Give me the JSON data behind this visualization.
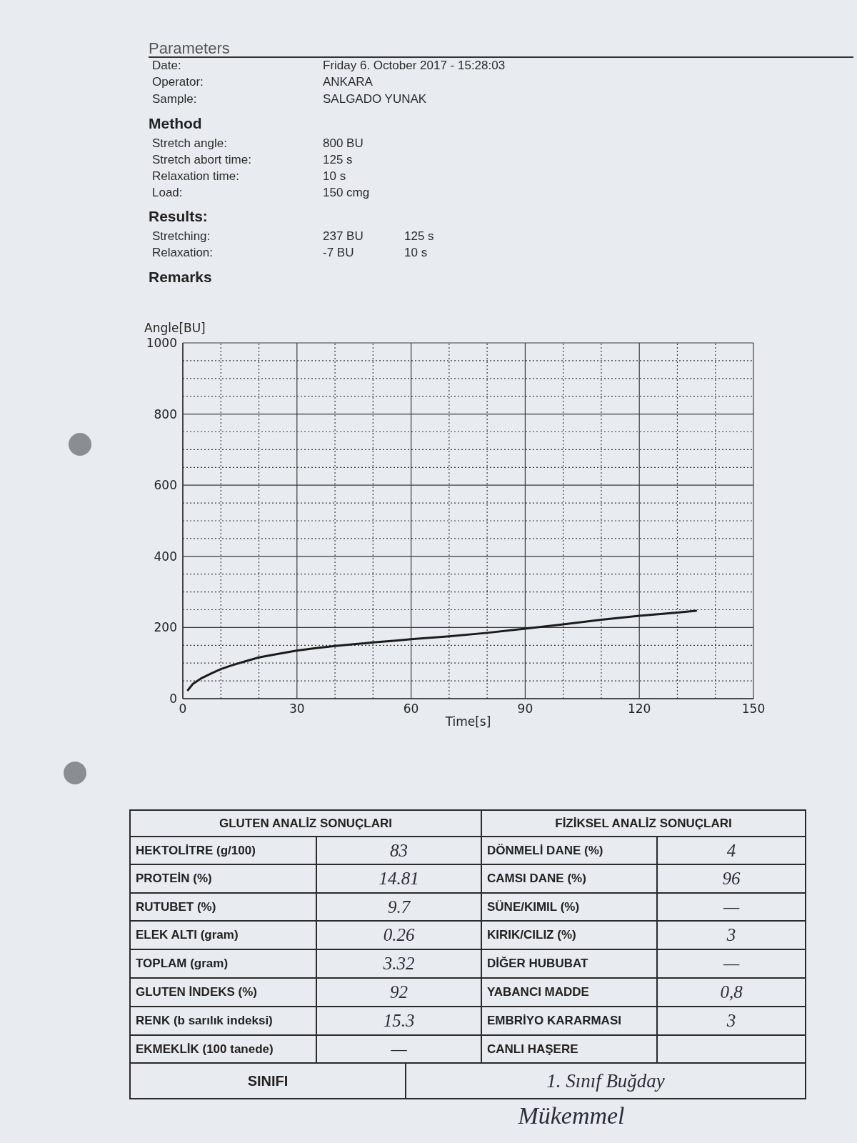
{
  "chart_data": [
    {
      "type": "other",
      "title": "Parameters",
      "annotations": [
        "Date:",
        "Friday 6. October 2017 - 15:28:03",
        "Operator:",
        "ANKARA",
        "Sample:",
        "SALGADO YUNAK",
        "Method",
        "Stretch angle:",
        "800 BU",
        "Stretch abort time:",
        "125 s",
        "Relaxation time:",
        "10 s",
        "Load:",
        "150 cmg",
        "Results:",
        "Stretching:",
        "237 BU",
        "125 s",
        "Relaxation:",
        "-7 BU",
        "10 s",
        "Remarks"
      ]
    },
    {
      "type": "line",
      "xlabel": "Time[s]",
      "ylabel": "Angle[BU]",
      "color": "#1b1b1b",
      "line_style": "solid",
      "grid": true,
      "x": [
        1.35,
        2.6,
        5,
        7.5,
        10,
        13,
        16.1,
        20,
        24.6,
        29.9,
        35,
        40,
        45,
        50,
        56,
        60,
        70,
        80,
        90,
        100,
        110,
        120,
        130,
        134.9
      ],
      "values": [
        24,
        41,
        58,
        71,
        83,
        94,
        104,
        116,
        125,
        135,
        142,
        148,
        153,
        158,
        163,
        167,
        175,
        185,
        197,
        209,
        222,
        233,
        242,
        247
      ],
      "xlim": [
        0,
        150
      ],
      "xticks": [
        0,
        {
          "value": 10,
          "label": null
        },
        {
          "value": 20,
          "label": null
        },
        30,
        {
          "value": 40,
          "label": null
        },
        {
          "value": 50,
          "label": null
        },
        60,
        {
          "value": 70,
          "label": null
        },
        {
          "value": 80,
          "label": null
        },
        90,
        {
          "value": 100,
          "label": null
        },
        {
          "value": 110,
          "label": null
        },
        120,
        {
          "value": 130,
          "label": null
        },
        {
          "value": 140,
          "label": null
        },
        150
      ],
      "ylim": [
        0,
        1000
      ],
      "yticks": [
        0,
        {
          "value": 50,
          "label": null
        },
        {
          "value": 100,
          "label": null
        },
        {
          "value": 150,
          "label": null
        },
        200,
        {
          "value": 250,
          "label": null
        },
        {
          "value": 300,
          "label": null
        },
        {
          "value": 350,
          "label": null
        },
        400,
        {
          "value": 450,
          "label": null
        },
        {
          "value": 500,
          "label": null
        },
        {
          "value": 550,
          "label": null
        },
        600,
        {
          "value": 650,
          "label": null
        },
        {
          "value": 700,
          "label": null
        },
        {
          "value": 750,
          "label": null
        },
        800,
        {
          "value": 850,
          "label": null
        },
        {
          "value": 900,
          "label": null
        },
        {
          "value": 950,
          "label": null
        },
        1000
      ]
    },
    {
      "type": "other",
      "annotations": [
        "GLUTEN ANALİZ SONUÇLARI",
        "FİZİKSEL ANALİZ SONUÇLARI",
        "HEKTOLİTRE (g/100)",
        "83",
        "DÖNMELİ DANE (%)",
        "4",
        "PROTEİN (%)",
        "14.81",
        "CAMSI DANE (%)",
        "96",
        "RUTUBET (%)",
        "9.7",
        "SÜNE/KIMIL (%)",
        "—",
        "ELEK ALTI (gram)",
        "0.26",
        "KIRIK/CILIZ (%)",
        "3",
        "TOPLAM (gram)",
        "3.32",
        "DİĞER HUBUBAT",
        "—",
        "GLUTEN İNDEKS (%)",
        "92",
        "YABANCI MADDE",
        "0,8",
        "RENK (b sarılık indeksi)",
        "15.3",
        "EMBRİYO KARARMASI",
        "3",
        "EKMEKLİK (100 tanede)",
        "—",
        "CANLI HAŞERE",
        "SINIFI",
        "1. Sınıf Buğday",
        "Mükemmel"
      ]
    }
  ]
}
